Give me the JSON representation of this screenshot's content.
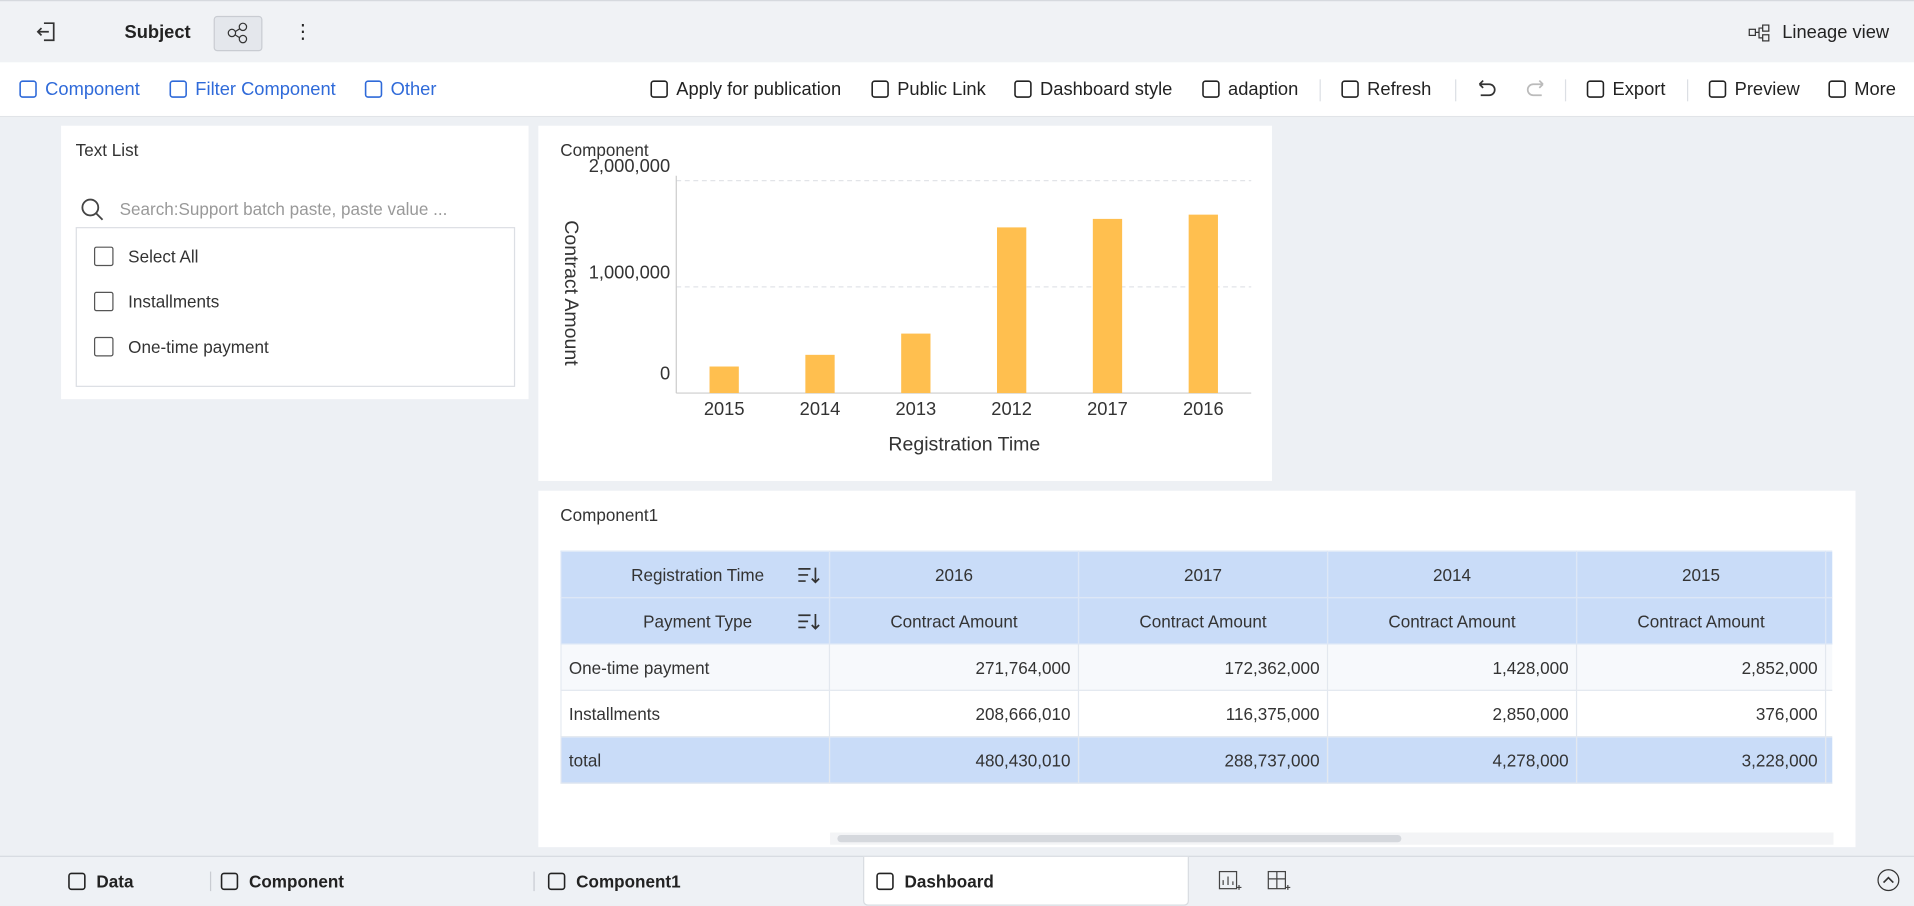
{
  "header": {
    "title": "Subject",
    "lineage": "Lineage view"
  },
  "toolbar": {
    "left": [
      "Component",
      "Filter Component",
      "Other"
    ],
    "right": [
      "Apply for publication",
      "Public Link",
      "Dashboard style",
      "adaption",
      "Refresh",
      "Export",
      "Preview",
      "More"
    ]
  },
  "text_list": {
    "title": "Text List",
    "search_placeholder": "Search:Support batch paste, paste value ...",
    "options": [
      "Select All",
      "Installments",
      "One-time payment"
    ]
  },
  "chart_data": {
    "type": "bar",
    "title": "Component",
    "x_label": "Registration Time",
    "y_label": "Contract Amount",
    "categories": [
      "2015",
      "2014",
      "2013",
      "2012",
      "2017",
      "2016"
    ],
    "values": [
      250000,
      360000,
      560000,
      1560000,
      1640000,
      1680000
    ],
    "color": "#ffbf4f",
    "ylim": [
      0,
      2000000
    ],
    "yticks": [
      0,
      {
        "value": 1000000,
        "label": "1,000,000"
      },
      {
        "value": 2000000,
        "label": "2,000,000"
      }
    ],
    "grid": true
  },
  "table": {
    "title": "Component1",
    "row_headers": [
      "Registration Time",
      "Payment Type"
    ],
    "columns": [
      "2016",
      "2017",
      "2014",
      "2015"
    ],
    "measure": "Contract Amount",
    "rows": [
      [
        "One-time payment",
        "271,764,000",
        "172,362,000",
        "1,428,000",
        "2,852,000"
      ],
      [
        "Installments",
        "208,666,010",
        "116,375,000",
        "2,850,000",
        "376,000"
      ],
      [
        "total",
        "480,430,010",
        "288,737,000",
        "4,278,000",
        "3,228,000"
      ]
    ]
  },
  "tabs": [
    "Data",
    "Component",
    "Component1",
    "Dashboard"
  ]
}
